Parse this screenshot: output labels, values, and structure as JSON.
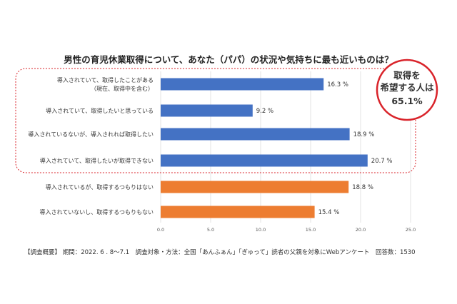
{
  "chart_data": {
    "type": "bar",
    "orientation": "horizontal",
    "title": "男性の育児休業取得について、あなた（パパ）の状況や気持ちに最も近いものは？",
    "categories": [
      [
        "導入されていて、取得したことがある",
        "（現在、取得中を含む）"
      ],
      [
        "導入されていて、取得したいと思っている"
      ],
      [
        "導入されているないが、導入されれば取得したい"
      ],
      [
        "導入されていて、取得したいが取得できない"
      ],
      [
        "導入されているが、取得するつもりはない"
      ],
      [
        "導入されていないし、取得するつもりもない"
      ]
    ],
    "values": [
      16.3,
      9.2,
      18.9,
      20.7,
      18.8,
      15.4
    ],
    "value_labels": [
      "16.3 %",
      "9.2 %",
      "18.9 %",
      "20.7 %",
      "18.8 %",
      "15.4 %"
    ],
    "bar_colors": [
      "#4472c4",
      "#4472c4",
      "#4472c4",
      "#4472c4",
      "#ed7d31",
      "#ed7d31"
    ],
    "xlim": [
      0,
      25
    ],
    "xticks": [
      "0.0",
      "5.0",
      "10.0",
      "15.0",
      "20.0",
      "25.0"
    ],
    "grid": true,
    "xlabel": "",
    "ylabel": "",
    "callout": {
      "lines": [
        "取得を",
        "希望する人は",
        "65.1%"
      ],
      "color": "#d9232a"
    }
  },
  "footer": "【調査概要】 期間：2022. 6 . 8～7.1　調査対象・方法：全国「あんふぁん」「ぎゅって」読者の父親を対象にWebアンケート　回答数：1530"
}
